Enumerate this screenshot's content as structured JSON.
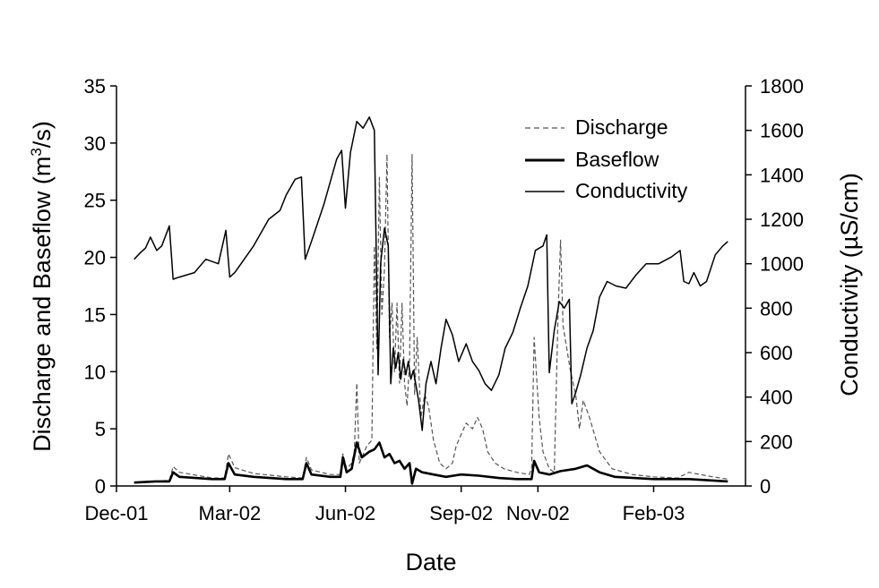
{
  "chart_data": {
    "type": "line",
    "title": "",
    "xlabel": "Date",
    "ylabel_left_prefix": "Discharge and Baseflow (m",
    "ylabel_left_sup": "3",
    "ylabel_left_suffix": "/s)",
    "ylabel_right": "Conductivity (µS/cm)",
    "x_ticks": [
      "Dec-01",
      "Mar-02",
      "Jun-02",
      "Sep-02",
      "Nov-02",
      "Feb-03"
    ],
    "x_tick_dates": [
      "2001-12-01",
      "2002-03-01",
      "2002-06-01",
      "2002-09-01",
      "2002-11-01",
      "2003-02-01"
    ],
    "xlim": [
      "2001-12-01",
      "2003-04-15"
    ],
    "ylim_left": [
      0,
      35
    ],
    "yticks_left": [
      0,
      5,
      10,
      15,
      20,
      25,
      30,
      35
    ],
    "ylim_right": [
      0,
      1800
    ],
    "yticks_right": [
      0,
      200,
      400,
      600,
      800,
      1000,
      1200,
      1400,
      1600,
      1800
    ],
    "legend_position": "top-right",
    "series": [
      {
        "name": "Discharge",
        "axis": "left",
        "style": "dashed",
        "color": "#000000",
        "points": [
          [
            "2001-12-15",
            0.3
          ],
          [
            "2002-01-01",
            0.4
          ],
          [
            "2002-01-12",
            0.5
          ],
          [
            "2002-01-15",
            1.7
          ],
          [
            "2002-01-20",
            1.2
          ],
          [
            "2002-02-15",
            0.7
          ],
          [
            "2002-02-25",
            0.7
          ],
          [
            "2002-02-28",
            2.8
          ],
          [
            "2002-03-05",
            1.6
          ],
          [
            "2002-03-20",
            1.1
          ],
          [
            "2002-04-15",
            0.8
          ],
          [
            "2002-04-28",
            0.7
          ],
          [
            "2002-05-01",
            2.5
          ],
          [
            "2002-05-05",
            1.4
          ],
          [
            "2002-05-20",
            1.0
          ],
          [
            "2002-05-28",
            1.0
          ],
          [
            "2002-05-30",
            2.8
          ],
          [
            "2002-06-02",
            1.5
          ],
          [
            "2002-06-06",
            2.0
          ],
          [
            "2002-06-08",
            3.0
          ],
          [
            "2002-06-10",
            9.0
          ],
          [
            "2002-06-12",
            2.0
          ],
          [
            "2002-06-18",
            3.5
          ],
          [
            "2002-06-22",
            4.0
          ],
          [
            "2002-06-24",
            21.0
          ],
          [
            "2002-06-26",
            12.0
          ],
          [
            "2002-06-28",
            27.0
          ],
          [
            "2002-06-30",
            15.0
          ],
          [
            "2002-07-02",
            19.0
          ],
          [
            "2002-07-04",
            29.0
          ],
          [
            "2002-07-06",
            13.0
          ],
          [
            "2002-07-08",
            16.0
          ],
          [
            "2002-07-10",
            10.0
          ],
          [
            "2002-07-12",
            16.0
          ],
          [
            "2002-07-14",
            9.0
          ],
          [
            "2002-07-16",
            16.0
          ],
          [
            "2002-07-18",
            9.0
          ],
          [
            "2002-07-20",
            7.0
          ],
          [
            "2002-07-22",
            11.0
          ],
          [
            "2002-07-24",
            29.0
          ],
          [
            "2002-07-26",
            8.0
          ],
          [
            "2002-07-28",
            13.0
          ],
          [
            "2002-07-31",
            6.0
          ],
          [
            "2002-08-03",
            8.0
          ],
          [
            "2002-08-06",
            7.0
          ],
          [
            "2002-08-10",
            4.0
          ],
          [
            "2002-08-15",
            2.0
          ],
          [
            "2002-08-20",
            1.5
          ],
          [
            "2002-08-25",
            2.0
          ],
          [
            "2002-08-28",
            3.5
          ],
          [
            "2002-09-01",
            4.5
          ],
          [
            "2002-09-05",
            5.5
          ],
          [
            "2002-09-10",
            5.0
          ],
          [
            "2002-09-14",
            6.0
          ],
          [
            "2002-09-18",
            5.0
          ],
          [
            "2002-09-22",
            3.0
          ],
          [
            "2002-09-28",
            2.0
          ],
          [
            "2002-10-05",
            1.5
          ],
          [
            "2002-10-15",
            1.2
          ],
          [
            "2002-10-25",
            1.0
          ],
          [
            "2002-10-27",
            1.5
          ],
          [
            "2002-10-29",
            13.0
          ],
          [
            "2002-11-02",
            6.0
          ],
          [
            "2002-11-05",
            3.0
          ],
          [
            "2002-11-10",
            1.5
          ],
          [
            "2002-11-14",
            1.2
          ],
          [
            "2002-11-17",
            15.0
          ],
          [
            "2002-11-19",
            21.5
          ],
          [
            "2002-11-21",
            14.0
          ],
          [
            "2002-11-24",
            12.0
          ],
          [
            "2002-11-27",
            10.0
          ],
          [
            "2002-12-01",
            8.0
          ],
          [
            "2002-12-04",
            5.0
          ],
          [
            "2002-12-07",
            7.5
          ],
          [
            "2002-12-12",
            6.0
          ],
          [
            "2002-12-20",
            3.0
          ],
          [
            "2002-12-30",
            1.5
          ],
          [
            "2003-01-15",
            1.0
          ],
          [
            "2003-02-01",
            0.8
          ],
          [
            "2003-02-20",
            0.7
          ],
          [
            "2003-03-01",
            1.2
          ],
          [
            "2003-03-10",
            1.0
          ],
          [
            "2003-03-20",
            0.8
          ],
          [
            "2003-04-01",
            0.6
          ]
        ]
      },
      {
        "name": "Baseflow",
        "axis": "left",
        "style": "thick",
        "color": "#000000",
        "points": [
          [
            "2001-12-15",
            0.3
          ],
          [
            "2002-01-01",
            0.4
          ],
          [
            "2002-01-12",
            0.4
          ],
          [
            "2002-01-15",
            1.2
          ],
          [
            "2002-01-20",
            0.8
          ],
          [
            "2002-02-15",
            0.6
          ],
          [
            "2002-02-25",
            0.6
          ],
          [
            "2002-02-28",
            2.0
          ],
          [
            "2002-03-05",
            1.0
          ],
          [
            "2002-03-20",
            0.8
          ],
          [
            "2002-04-15",
            0.6
          ],
          [
            "2002-04-28",
            0.6
          ],
          [
            "2002-05-01",
            2.0
          ],
          [
            "2002-05-05",
            1.0
          ],
          [
            "2002-05-20",
            0.8
          ],
          [
            "2002-05-28",
            0.8
          ],
          [
            "2002-05-30",
            2.5
          ],
          [
            "2002-06-02",
            1.2
          ],
          [
            "2002-06-06",
            1.5
          ],
          [
            "2002-06-10",
            3.8
          ],
          [
            "2002-06-14",
            2.5
          ],
          [
            "2002-06-20",
            3.0
          ],
          [
            "2002-06-24",
            3.2
          ],
          [
            "2002-06-28",
            3.8
          ],
          [
            "2002-07-02",
            2.5
          ],
          [
            "2002-07-06",
            2.8
          ],
          [
            "2002-07-10",
            2.0
          ],
          [
            "2002-07-14",
            2.2
          ],
          [
            "2002-07-18",
            1.5
          ],
          [
            "2002-07-22",
            2.0
          ],
          [
            "2002-07-24",
            0.2
          ],
          [
            "2002-07-27",
            1.5
          ],
          [
            "2002-08-01",
            1.2
          ],
          [
            "2002-08-10",
            1.0
          ],
          [
            "2002-08-20",
            0.8
          ],
          [
            "2002-09-01",
            1.0
          ],
          [
            "2002-09-15",
            0.9
          ],
          [
            "2002-10-01",
            0.7
          ],
          [
            "2002-10-15",
            0.6
          ],
          [
            "2002-10-27",
            0.6
          ],
          [
            "2002-10-29",
            2.2
          ],
          [
            "2002-11-02",
            1.2
          ],
          [
            "2002-11-10",
            1.0
          ],
          [
            "2002-11-19",
            1.3
          ],
          [
            "2002-12-01",
            1.5
          ],
          [
            "2002-12-10",
            1.8
          ],
          [
            "2002-12-20",
            1.2
          ],
          [
            "2003-01-01",
            0.8
          ],
          [
            "2003-02-01",
            0.6
          ],
          [
            "2003-03-01",
            0.6
          ],
          [
            "2003-04-01",
            0.4
          ]
        ]
      },
      {
        "name": "Conductivity",
        "axis": "right",
        "style": "solid",
        "color": "#000000",
        "points": [
          [
            "2001-12-15",
            1020
          ],
          [
            "2001-12-20",
            1050
          ],
          [
            "2001-12-24",
            1070
          ],
          [
            "2001-12-28",
            1120
          ],
          [
            "2002-01-02",
            1060
          ],
          [
            "2002-01-06",
            1080
          ],
          [
            "2002-01-12",
            1170
          ],
          [
            "2002-01-15",
            930
          ],
          [
            "2002-01-20",
            940
          ],
          [
            "2002-02-01",
            960
          ],
          [
            "2002-02-10",
            1020
          ],
          [
            "2002-02-20",
            1000
          ],
          [
            "2002-02-26",
            1150
          ],
          [
            "2002-03-01",
            940
          ],
          [
            "2002-03-05",
            960
          ],
          [
            "2002-03-10",
            1000
          ],
          [
            "2002-03-20",
            1080
          ],
          [
            "2002-04-01",
            1200
          ],
          [
            "2002-04-10",
            1240
          ],
          [
            "2002-04-15",
            1310
          ],
          [
            "2002-04-22",
            1380
          ],
          [
            "2002-04-27",
            1390
          ],
          [
            "2002-04-30",
            1020
          ],
          [
            "2002-05-05",
            1100
          ],
          [
            "2002-05-15",
            1270
          ],
          [
            "2002-05-25",
            1470
          ],
          [
            "2002-05-29",
            1510
          ],
          [
            "2002-06-01",
            1250
          ],
          [
            "2002-06-05",
            1500
          ],
          [
            "2002-06-10",
            1640
          ],
          [
            "2002-06-15",
            1610
          ],
          [
            "2002-06-20",
            1660
          ],
          [
            "2002-06-24",
            1600
          ],
          [
            "2002-06-27",
            500
          ],
          [
            "2002-06-29",
            1000
          ],
          [
            "2002-07-02",
            1160
          ],
          [
            "2002-07-05",
            1080
          ],
          [
            "2002-07-07",
            460
          ],
          [
            "2002-07-09",
            620
          ],
          [
            "2002-07-11",
            530
          ],
          [
            "2002-07-13",
            600
          ],
          [
            "2002-07-15",
            480
          ],
          [
            "2002-07-17",
            570
          ],
          [
            "2002-07-19",
            500
          ],
          [
            "2002-07-21",
            560
          ],
          [
            "2002-07-23",
            480
          ],
          [
            "2002-07-25",
            520
          ],
          [
            "2002-07-29",
            390
          ],
          [
            "2002-08-01",
            250
          ],
          [
            "2002-08-04",
            460
          ],
          [
            "2002-08-08",
            560
          ],
          [
            "2002-08-12",
            460
          ],
          [
            "2002-08-16",
            620
          ],
          [
            "2002-08-20",
            750
          ],
          [
            "2002-08-25",
            680
          ],
          [
            "2002-08-30",
            560
          ],
          [
            "2002-09-05",
            640
          ],
          [
            "2002-09-10",
            560
          ],
          [
            "2002-09-15",
            520
          ],
          [
            "2002-09-20",
            460
          ],
          [
            "2002-09-25",
            430
          ],
          [
            "2002-10-01",
            500
          ],
          [
            "2002-10-06",
            620
          ],
          [
            "2002-10-12",
            690
          ],
          [
            "2002-10-18",
            800
          ],
          [
            "2002-10-24",
            900
          ],
          [
            "2002-10-30",
            1060
          ],
          [
            "2002-11-05",
            1080
          ],
          [
            "2002-11-08",
            1130
          ],
          [
            "2002-11-10",
            510
          ],
          [
            "2002-11-14",
            700
          ],
          [
            "2002-11-18",
            830
          ],
          [
            "2002-11-22",
            800
          ],
          [
            "2002-11-26",
            840
          ],
          [
            "2002-11-28",
            370
          ],
          [
            "2002-12-01",
            420
          ],
          [
            "2002-12-05",
            500
          ],
          [
            "2002-12-10",
            620
          ],
          [
            "2002-12-15",
            700
          ],
          [
            "2002-12-20",
            850
          ],
          [
            "2002-12-26",
            920
          ],
          [
            "2003-01-02",
            900
          ],
          [
            "2003-01-10",
            890
          ],
          [
            "2003-01-18",
            950
          ],
          [
            "2003-01-26",
            1000
          ],
          [
            "2003-02-05",
            1000
          ],
          [
            "2003-02-15",
            1030
          ],
          [
            "2003-02-22",
            1060
          ],
          [
            "2003-02-25",
            920
          ],
          [
            "2003-03-01",
            910
          ],
          [
            "2003-03-05",
            960
          ],
          [
            "2003-03-10",
            900
          ],
          [
            "2003-03-15",
            920
          ],
          [
            "2003-03-22",
            1040
          ],
          [
            "2003-03-28",
            1080
          ],
          [
            "2003-04-01",
            1100
          ]
        ]
      }
    ]
  }
}
